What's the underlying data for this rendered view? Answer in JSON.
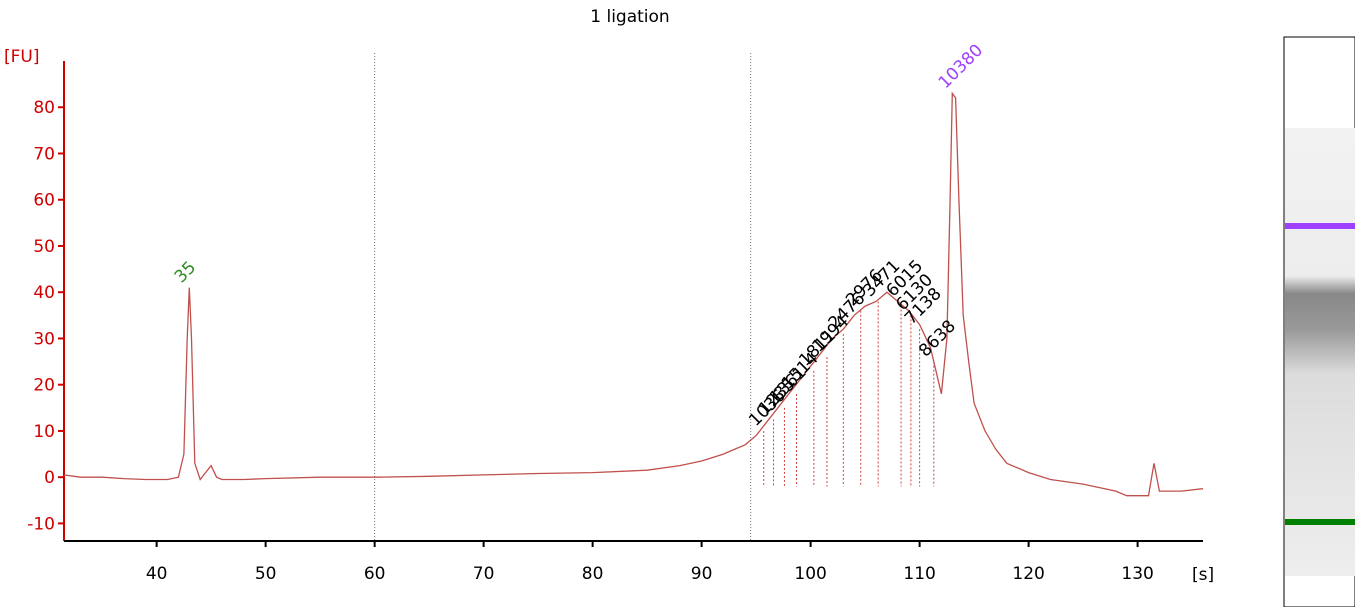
{
  "chart_data": {
    "type": "line",
    "title": "1 ligation",
    "y_label": "[FU]",
    "x_label": "[s]",
    "xlim": [
      31.5,
      136
    ],
    "ylim": [
      -13.8,
      90
    ],
    "xticks": [
      40,
      50,
      60,
      70,
      80,
      90,
      100,
      110,
      120,
      130
    ],
    "yticks": [
      -10,
      0,
      10,
      20,
      30,
      40,
      50,
      60,
      70,
      80
    ],
    "markers": [
      60,
      94.5
    ],
    "series": [
      {
        "name": "trace",
        "color": "#c0504d",
        "x": [
          31.5,
          33,
          35,
          37,
          39,
          41,
          42,
          42.5,
          42.8,
          43,
          43.2,
          43.5,
          44,
          45,
          45.5,
          46,
          48,
          50,
          55,
          60,
          65,
          70,
          75,
          80,
          85,
          88,
          90,
          92,
          93,
          94,
          95,
          96,
          97,
          98,
          99,
          100,
          101,
          102,
          103,
          104,
          105,
          106,
          107,
          108,
          109,
          110,
          111,
          112,
          112.5,
          112.8,
          113,
          113.3,
          113.6,
          114,
          114.5,
          115,
          116,
          117,
          118,
          120,
          122,
          125,
          128,
          129,
          130,
          131,
          131.5,
          132,
          134,
          136
        ],
        "values": [
          0.5,
          0,
          0,
          -0.3,
          -0.5,
          -0.5,
          0,
          5,
          30,
          41,
          30,
          3,
          -0.5,
          2.5,
          0,
          -0.5,
          -0.5,
          -0.3,
          0,
          0,
          0.2,
          0.5,
          0.8,
          1,
          1.5,
          2.5,
          3.5,
          5,
          6,
          7,
          9,
          12,
          15,
          18,
          21,
          24,
          27,
          30,
          32,
          35,
          37,
          38,
          40,
          38,
          36,
          33,
          28,
          18,
          30,
          60,
          83,
          82,
          60,
          35,
          25,
          16,
          10,
          6,
          3,
          1,
          -0.5,
          -1.5,
          -3,
          -4,
          -4,
          -4,
          3,
          -3,
          -3,
          -2.5
        ]
      }
    ],
    "peaks": [
      {
        "label": "35",
        "x": 43,
        "y": 41,
        "color": "#2e8b22"
      },
      {
        "label": "1036",
        "x": 95.7,
        "y": 10,
        "color": "#000000"
      },
      {
        "label": "1235",
        "x": 96.6,
        "y": 12.5,
        "color": "#000000"
      },
      {
        "label": "1361",
        "x": 97.6,
        "y": 15,
        "color": "#000000"
      },
      {
        "label": "1514",
        "x": 98.7,
        "y": 18,
        "color": "#000000"
      },
      {
        "label": "1811",
        "x": 100.3,
        "y": 23,
        "color": "#000000"
      },
      {
        "label": "1994",
        "x": 101.5,
        "y": 26,
        "color": "#000000"
      },
      {
        "label": "2476",
        "x": 103,
        "y": 31,
        "color": "#000000"
      },
      {
        "label": "2976",
        "x": 104.6,
        "y": 36,
        "color": "#000000"
      },
      {
        "label": "3471",
        "x": 106.2,
        "y": 38,
        "color": "#000000"
      },
      {
        "label": "6015",
        "x": 108.3,
        "y": 38,
        "color": "#000000"
      },
      {
        "label": "6130",
        "x": 109.2,
        "y": 35,
        "color": "#000000"
      },
      {
        "label": "7138",
        "x": 110,
        "y": 32,
        "color": "#000000"
      },
      {
        "label": "8638",
        "x": 111.3,
        "y": 25,
        "color": "#000000"
      },
      {
        "label": "10380",
        "x": 113.1,
        "y": 83,
        "color": "#a040ff"
      }
    ],
    "peak_base": -2
  }
}
